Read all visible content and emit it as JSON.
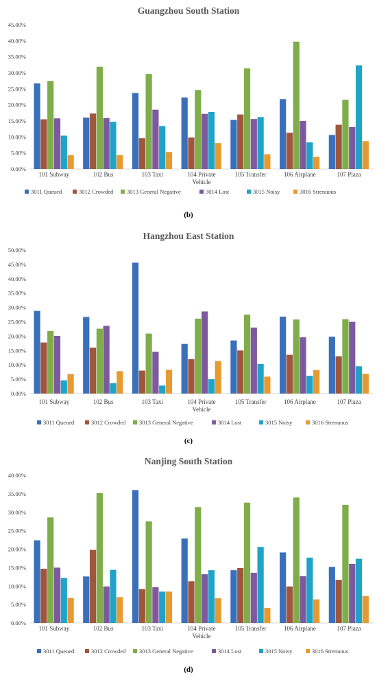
{
  "colors": {
    "3011 Queued": "#3a6fba",
    "3012 Crowded": "#a0563d",
    "3013 General Negative": "#7fad49",
    "3014 Lost": "#7d5aa0",
    "3015 Noisy": "#1fa3c6",
    "3016 Strenuous": "#e69a32"
  },
  "chart_data": [
    {
      "type": "bar",
      "title": "Guangzhou South Station",
      "panel_label": "(b)",
      "categories": [
        "101 Subway",
        "102 Bus",
        "103 Taxi",
        "104 Private Vehicle",
        "105 Transfer",
        "106 Airplane",
        "107 Plaza"
      ],
      "ylim": [
        0,
        45
      ],
      "yticks": [
        "0.00%",
        "5.00%",
        "10.00%",
        "15.00%",
        "20.00%",
        "25.00%",
        "30.00%",
        "35.00%",
        "40.00%",
        "45.00%"
      ],
      "ystep": 5,
      "legend_position": "bottom",
      "grid": false,
      "series": [
        {
          "name": "3011 Queued",
          "values": [
            26.7,
            16.0,
            23.7,
            22.3,
            15.3,
            21.8,
            10.6
          ]
        },
        {
          "name": "3012 Crowded",
          "values": [
            15.5,
            17.3,
            9.6,
            9.8,
            17.0,
            11.3,
            13.8
          ]
        },
        {
          "name": "3013 General Negative",
          "values": [
            27.4,
            31.9,
            29.6,
            24.6,
            31.4,
            39.7,
            21.6
          ]
        },
        {
          "name": "3014 Lost",
          "values": [
            15.8,
            15.9,
            18.5,
            17.2,
            15.6,
            15.0,
            13.1
          ]
        },
        {
          "name": "3015 Noisy",
          "values": [
            10.4,
            14.7,
            13.4,
            17.8,
            16.2,
            8.3,
            32.3
          ]
        },
        {
          "name": "3016 Strenuous",
          "values": [
            4.3,
            4.3,
            5.3,
            8.1,
            4.6,
            3.8,
            8.7
          ]
        }
      ]
    },
    {
      "type": "bar",
      "title": "Hangzhou East Station",
      "panel_label": "(c)",
      "categories": [
        "101 Subway",
        "102 Bus",
        "103 Taxi",
        "104 Private Vehicle",
        "105 Transfer",
        "106 Airplane",
        "107 Plaza"
      ],
      "ylim": [
        0,
        50
      ],
      "yticks": [
        "0.00%",
        "5.00%",
        "10.00%",
        "15.00%",
        "20.00%",
        "25.00%",
        "30.00%",
        "35.00%",
        "40.00%",
        "45.00%",
        "50.00%"
      ],
      "ystep": 5,
      "legend_position": "bottom",
      "grid": false,
      "series": [
        {
          "name": "3011 Queued",
          "values": [
            28.8,
            26.7,
            45.6,
            17.3,
            18.5,
            26.8,
            19.8
          ]
        },
        {
          "name": "3012 Crowded",
          "values": [
            17.8,
            16.0,
            8.0,
            12.0,
            15.0,
            13.5,
            13.0
          ]
        },
        {
          "name": "3013 General Negative",
          "values": [
            21.8,
            22.6,
            20.9,
            26.1,
            27.5,
            25.8,
            25.9
          ]
        },
        {
          "name": "3014 Lost",
          "values": [
            20.1,
            23.6,
            14.6,
            28.6,
            23.0,
            19.6,
            25.0
          ]
        },
        {
          "name": "3015 Noisy",
          "values": [
            4.6,
            3.6,
            2.8,
            5.0,
            10.3,
            6.2,
            9.5
          ]
        },
        {
          "name": "3016 Strenuous",
          "values": [
            6.8,
            7.8,
            8.3,
            11.3,
            5.9,
            8.2,
            6.9
          ]
        }
      ]
    },
    {
      "type": "bar",
      "title": "Nanjing South Station",
      "panel_label": "(d)",
      "categories": [
        "101 Subway",
        "102 Bus",
        "103 Taxi",
        "104 Private Vehicle",
        "105 Transfer",
        "106 Airplane",
        "107 Plaza"
      ],
      "ylim": [
        0,
        40
      ],
      "yticks": [
        "0.00%",
        "5.00%",
        "10.00%",
        "15.00%",
        "20.00%",
        "25.00%",
        "30.00%",
        "35.00%",
        "40.00%"
      ],
      "ystep": 5,
      "legend_position": "bottom",
      "grid": false,
      "series": [
        {
          "name": "3011 Queued",
          "values": [
            22.4,
            12.6,
            36.0,
            22.9,
            14.3,
            19.1,
            15.2
          ]
        },
        {
          "name": "3012 Crowded",
          "values": [
            14.7,
            19.8,
            9.2,
            11.3,
            14.9,
            9.9,
            11.7
          ]
        },
        {
          "name": "3013 General Negative",
          "values": [
            28.6,
            35.2,
            27.5,
            31.4,
            32.6,
            34.0,
            32.0
          ]
        },
        {
          "name": "3014 Lost",
          "values": [
            15.0,
            9.9,
            9.7,
            13.2,
            13.6,
            12.7,
            16.0
          ]
        },
        {
          "name": "3015 Noisy",
          "values": [
            12.2,
            14.4,
            8.5,
            14.3,
            20.6,
            17.7,
            17.4
          ]
        },
        {
          "name": "3016 Strenuous",
          "values": [
            6.8,
            7.0,
            8.5,
            6.7,
            4.1,
            6.4,
            7.3
          ]
        }
      ]
    }
  ]
}
